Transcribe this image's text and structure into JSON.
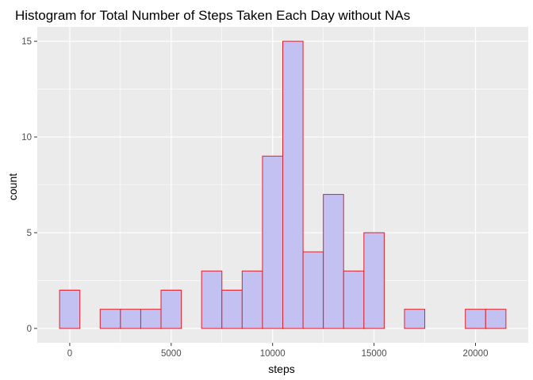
{
  "chart_data": {
    "type": "bar",
    "title": "Histogram for Total Number of Steps Taken Each Day without NAs",
    "xlabel": "steps",
    "ylabel": "count",
    "bin_width": 1000,
    "bins": [
      {
        "center": 0,
        "count": 2
      },
      {
        "center": 1000,
        "count": 0
      },
      {
        "center": 2000,
        "count": 1
      },
      {
        "center": 3000,
        "count": 1
      },
      {
        "center": 4000,
        "count": 1
      },
      {
        "center": 5000,
        "count": 2
      },
      {
        "center": 6000,
        "count": 0
      },
      {
        "center": 7000,
        "count": 3
      },
      {
        "center": 8000,
        "count": 2
      },
      {
        "center": 9000,
        "count": 3
      },
      {
        "center": 10000,
        "count": 9
      },
      {
        "center": 11000,
        "count": 15
      },
      {
        "center": 12000,
        "count": 4
      },
      {
        "center": 13000,
        "count": 7
      },
      {
        "center": 14000,
        "count": 3
      },
      {
        "center": 15000,
        "count": 5
      },
      {
        "center": 16000,
        "count": 0
      },
      {
        "center": 17000,
        "count": 1
      },
      {
        "center": 18000,
        "count": 0
      },
      {
        "center": 19000,
        "count": 0
      },
      {
        "center": 20000,
        "count": 1
      },
      {
        "center": 21000,
        "count": 1
      }
    ],
    "xlim": [
      -1600,
      22600
    ],
    "ylim": [
      -0.75,
      15.75
    ],
    "x_ticks": [
      0,
      5000,
      10000,
      15000,
      20000
    ],
    "y_ticks": [
      0,
      5,
      10,
      15
    ],
    "grid": true,
    "colors": {
      "panel_background": "#ebebeb",
      "grid_major": "#ffffff",
      "bar_fill": "#c3c1f2",
      "bar_stroke": "#e0202a"
    }
  }
}
